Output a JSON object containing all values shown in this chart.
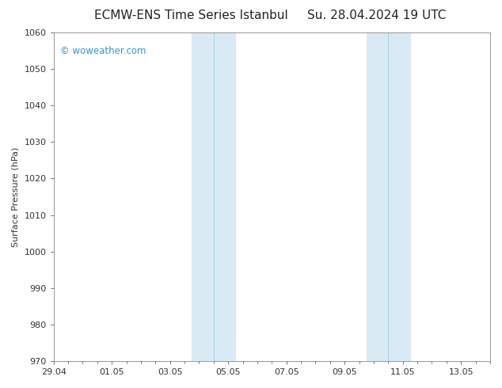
{
  "title_left": "ECMW-ENS Time Series Istanbul",
  "title_right": "Su. 28.04.2024 19 UTC",
  "ylabel": "Surface Pressure (hPa)",
  "ylim": [
    970,
    1060
  ],
  "yticks": [
    970,
    980,
    990,
    1000,
    1010,
    1020,
    1030,
    1040,
    1050,
    1060
  ],
  "xlim": [
    0,
    15
  ],
  "xtick_labels": [
    "29.04",
    "01.05",
    "03.05",
    "05.05",
    "07.05",
    "09.05",
    "11.05",
    "13.05"
  ],
  "xtick_positions_days": [
    0,
    2,
    4,
    6,
    8,
    10,
    12,
    14
  ],
  "shaded_bands": [
    {
      "start_day": 4.75,
      "end_day": 5.5
    },
    {
      "start_day": 5.5,
      "end_day": 6.25
    },
    {
      "start_day": 10.75,
      "end_day": 11.5
    },
    {
      "start_day": 11.5,
      "end_day": 12.25
    }
  ],
  "band_colors": [
    "#ddeef8",
    "#d8ecf5",
    "#ddeef8",
    "#d8ecf5"
  ],
  "band_divider_color": "#99ccdd",
  "shaded_color": "#daeaf5",
  "background_color": "#ffffff",
  "plot_bg_color": "#ffffff",
  "watermark": "© woweather.com",
  "watermark_color": "#3399cc",
  "title_fontsize": 11,
  "axis_label_fontsize": 8,
  "tick_fontsize": 8,
  "watermark_fontsize": 8.5,
  "spine_color": "#888888",
  "tick_color": "#333333"
}
